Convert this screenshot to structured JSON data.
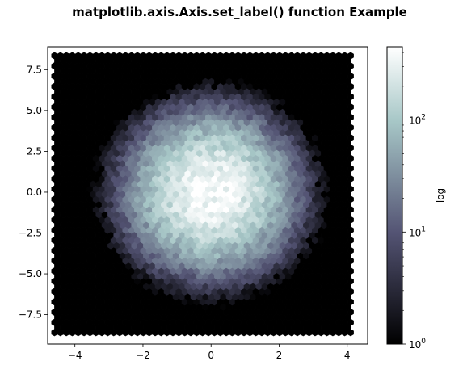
{
  "chart_data": {
    "type": "hexbin",
    "title": "matplotlib.axis.Axis.set_label() function Example",
    "xlabel": "",
    "ylabel": "",
    "xlim": [
      -4.8,
      4.6
    ],
    "ylim": [
      -9.3,
      8.9
    ],
    "xticks": [
      -4,
      -2,
      0,
      2,
      4
    ],
    "xtick_labels": [
      "−4",
      "−2",
      "0",
      "2",
      "4"
    ],
    "yticks": [
      -7.5,
      -5.0,
      -2.5,
      0.0,
      2.5,
      5.0,
      7.5
    ],
    "ytick_labels": [
      "−7.5",
      "−5.0",
      "−2.5",
      "0.0",
      "2.5",
      "5.0",
      "7.5"
    ],
    "hexbin": {
      "extent": [
        -4.6,
        4.1,
        -8.6,
        8.4
      ],
      "center": [
        0,
        0
      ],
      "sigma_x": 1.0,
      "sigma_y": 2.0,
      "peak_count": 420,
      "count_scale": "log",
      "colormap": "bone"
    },
    "colorbar": {
      "label": "log",
      "scale": "log",
      "range": [
        1,
        450
      ],
      "ticks": [
        1,
        10,
        100
      ],
      "tick_labels": [
        {
          "base": "10",
          "exp": "0"
        },
        {
          "base": "10",
          "exp": "1"
        },
        {
          "base": "10",
          "exp": "2"
        }
      ]
    },
    "grid": false,
    "legend": null
  },
  "colors": {
    "background": "#ffffff",
    "axes_edge": "#000000",
    "empty_bin": "#000000"
  }
}
